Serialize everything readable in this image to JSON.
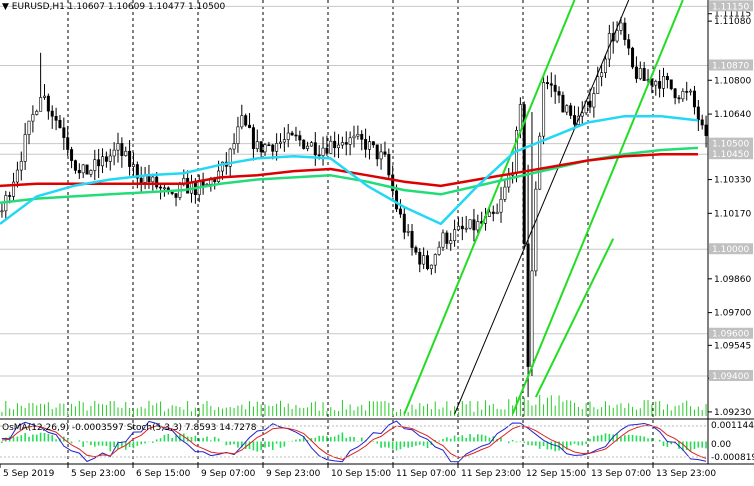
{
  "header": {
    "arrow_icon": "triangle-down-icon",
    "symbol": "EURUSD,H1",
    "ohlc": "1.10607 1.10609 1.10477 1.10500"
  },
  "indicator_header": {
    "osma": "OsMA(12,26,9) -0.0003597",
    "stoch": "Stoch(5,3,3) 7.8593 14.7278"
  },
  "colors": {
    "background": "#ffffff",
    "candles": "#000000",
    "ma_red": "#dd0000",
    "ma_cyan": "#22d8f5",
    "ma_green": "#22dd77",
    "channel_green": "#22dd22",
    "trend_black": "#000000",
    "volume": "#22cc22",
    "osma_bars": "#22dd55",
    "stoch_main": "#2222cc",
    "stoch_signal": "#dd2222",
    "price_tag_bg": "#c0c0c0"
  },
  "chart_data": {
    "type": "candlestick",
    "symbol": "EURUSD",
    "timeframe": "H1",
    "ylim": [
      1.0922,
      1.1118
    ],
    "price_ticks": [
      "1.11115",
      "1.11080",
      "1.10870",
      "1.10800",
      "1.10640",
      "1.10500",
      "1.10450",
      "1.10330",
      "1.10170",
      "1.10000",
      "1.09860",
      "1.09700",
      "1.09600",
      "1.09545",
      "1.09400",
      "1.09390",
      "1.09230"
    ],
    "highlighted_levels": [
      {
        "label": "1.11150",
        "value": 1.1115
      },
      {
        "label": "1.10870",
        "value": 1.1087
      },
      {
        "label": "1.10500",
        "value": 1.105
      },
      {
        "label": "1.10450",
        "value": 1.1045
      },
      {
        "label": "1.10000",
        "value": 1.1
      },
      {
        "label": "1.09600",
        "value": 1.096
      },
      {
        "label": "1.09400",
        "value": 1.094
      }
    ],
    "time_labels": [
      "5 Sep 2019",
      "5 Sep 23:00",
      "6 Sep 15:00",
      "9 Sep 07:00",
      "9 Sep 23:00",
      "10 Sep 15:00",
      "11 Sep 07:00",
      "11 Sep 23:00",
      "12 Sep 15:00",
      "13 Sep 07:00",
      "13 Sep 23:00"
    ],
    "close_path": [
      [
        0,
        1.1018
      ],
      [
        5,
        1.1045
      ],
      [
        10,
        1.1075
      ],
      [
        13,
        1.1065
      ],
      [
        16,
        1.1055
      ],
      [
        20,
        1.1035
      ],
      [
        25,
        1.104
      ],
      [
        30,
        1.1047
      ],
      [
        35,
        1.1036
      ],
      [
        40,
        1.103
      ],
      [
        44,
        1.1023
      ],
      [
        47,
        1.103
      ],
      [
        52,
        1.1028
      ],
      [
        58,
        1.104
      ],
      [
        62,
        1.106
      ],
      [
        66,
        1.1048
      ],
      [
        70,
        1.105
      ],
      [
        76,
        1.1052
      ],
      [
        82,
        1.1048
      ],
      [
        88,
        1.1052
      ],
      [
        94,
        1.105
      ],
      [
        99,
        1.1042
      ],
      [
        102,
        1.102
      ],
      [
        106,
        1.1
      ],
      [
        110,
        1.0992
      ],
      [
        114,
        1.1005
      ],
      [
        118,
        1.1008
      ],
      [
        124,
        1.1012
      ],
      [
        128,
        1.1016
      ],
      [
        132,
        1.104
      ],
      [
        134,
        1.1065
      ],
      [
        136,
        1.0945
      ],
      [
        138,
        1.103
      ],
      [
        140,
        1.108
      ],
      [
        143,
        1.1075
      ],
      [
        147,
        1.1062
      ],
      [
        150,
        1.1062
      ],
      [
        154,
        1.108
      ],
      [
        157,
        1.11
      ],
      [
        160,
        1.1104
      ],
      [
        163,
        1.1085
      ],
      [
        166,
        1.108
      ],
      [
        170,
        1.108
      ],
      [
        174,
        1.1075
      ],
      [
        178,
        1.1072
      ],
      [
        180,
        1.1062
      ],
      [
        182,
        1.105
      ]
    ],
    "series": [
      {
        "id": "ma_fast",
        "values": [
          1.1012,
          1.1025,
          1.103,
          1.1033,
          1.1035,
          1.1036,
          1.104,
          1.1043,
          1.1044,
          1.1043,
          1.103,
          1.102,
          1.1012,
          1.103,
          1.1046,
          1.1053,
          1.106,
          1.1063,
          1.1063,
          1.1061
        ]
      },
      {
        "id": "ma_mid",
        "values": [
          1.103,
          1.1031,
          1.1031,
          1.1031,
          1.1031,
          1.1031,
          1.1034,
          1.1035,
          1.1037,
          1.1038,
          1.1035,
          1.1032,
          1.103,
          1.1033,
          1.1036,
          1.1039,
          1.1042,
          1.1044,
          1.1045,
          1.1045
        ]
      },
      {
        "id": "ma_slow",
        "values": [
          1.1022,
          1.1024,
          1.1025,
          1.1026,
          1.1027,
          1.1028,
          1.1031,
          1.1033,
          1.1034,
          1.1035,
          1.1032,
          1.1028,
          1.1026,
          1.103,
          1.1034,
          1.1038,
          1.1042,
          1.1045,
          1.1047,
          1.1048
        ]
      }
    ],
    "channels": [
      {
        "kind": "green",
        "from": [
          104,
          1.0922
        ],
        "to": [
          148,
          1.1118
        ]
      },
      {
        "kind": "green",
        "from": [
          132,
          1.0922
        ],
        "to": [
          176,
          1.1118
        ]
      },
      {
        "kind": "green",
        "from": [
          138,
          1.093
        ],
        "to": [
          158,
          1.1005
        ]
      },
      {
        "kind": "black",
        "from": [
          117,
          1.0922
        ],
        "to": [
          162,
          1.1118
        ]
      }
    ]
  }
}
